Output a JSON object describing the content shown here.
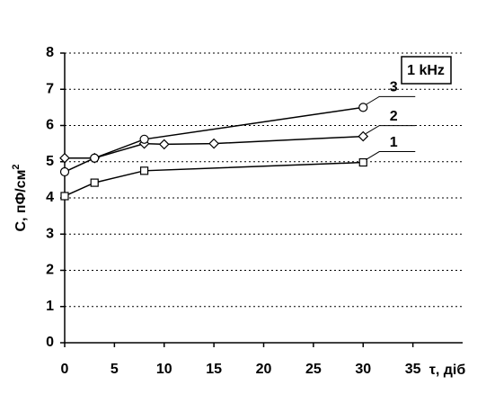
{
  "chart_data": {
    "type": "line",
    "annotation": "1 kHz",
    "xlabel": "τ, діб",
    "ylabel": "C, пФ/см",
    "ylabel_superscript": "2",
    "xlim": [
      0,
      40
    ],
    "xticks": [
      0,
      5,
      10,
      15,
      20,
      25,
      30,
      35
    ],
    "ylim": [
      0,
      8
    ],
    "yticks": [
      0,
      1,
      2,
      3,
      4,
      5,
      6,
      7,
      8
    ],
    "grid": true,
    "series": [
      {
        "name": "1",
        "color": "#000000",
        "marker": "square",
        "x": [
          0,
          3,
          8,
          30
        ],
        "values": [
          4.05,
          4.42,
          4.75,
          4.98
        ]
      },
      {
        "name": "2",
        "color": "#000000",
        "marker": "diamond",
        "x": [
          0,
          3,
          8,
          10,
          15,
          30
        ],
        "values": [
          5.1,
          5.1,
          5.5,
          5.48,
          5.5,
          5.7
        ]
      },
      {
        "name": "3",
        "color": "#000000",
        "marker": "circle",
        "x": [
          0,
          3,
          8,
          30
        ],
        "values": [
          4.72,
          5.1,
          5.62,
          6.5
        ]
      }
    ]
  }
}
